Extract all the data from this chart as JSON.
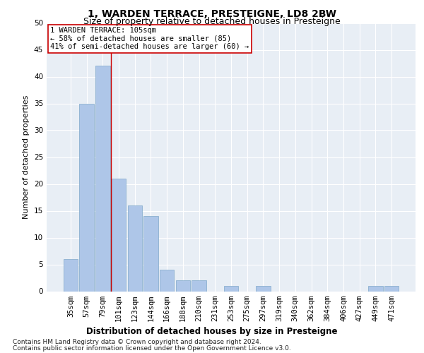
{
  "title": "1, WARDEN TERRACE, PRESTEIGNE, LD8 2BW",
  "subtitle": "Size of property relative to detached houses in Presteigne",
  "xlabel": "Distribution of detached houses by size in Presteigne",
  "ylabel": "Number of detached properties",
  "categories": [
    "35sqm",
    "57sqm",
    "79sqm",
    "101sqm",
    "123sqm",
    "144sqm",
    "166sqm",
    "188sqm",
    "210sqm",
    "231sqm",
    "253sqm",
    "275sqm",
    "297sqm",
    "319sqm",
    "340sqm",
    "362sqm",
    "384sqm",
    "406sqm",
    "427sqm",
    "449sqm",
    "471sqm"
  ],
  "values": [
    6,
    35,
    42,
    21,
    16,
    14,
    4,
    2,
    2,
    0,
    1,
    0,
    1,
    0,
    0,
    0,
    0,
    0,
    0,
    1,
    1
  ],
  "bar_color": "#aec6e8",
  "bar_edge_color": "#7fa8c9",
  "vline_x": 2.5,
  "vline_color": "#cc0000",
  "annotation_line1": "1 WARDEN TERRACE: 105sqm",
  "annotation_line2": "← 58% of detached houses are smaller (85)",
  "annotation_line3": "41% of semi-detached houses are larger (60) →",
  "annotation_box_color": "#cc0000",
  "ylim": [
    0,
    50
  ],
  "yticks": [
    0,
    5,
    10,
    15,
    20,
    25,
    30,
    35,
    40,
    45,
    50
  ],
  "footnote1": "Contains HM Land Registry data © Crown copyright and database right 2024.",
  "footnote2": "Contains public sector information licensed under the Open Government Licence v3.0.",
  "background_color": "#e8eef5",
  "grid_color": "#ffffff",
  "title_fontsize": 10,
  "subtitle_fontsize": 9,
  "xlabel_fontsize": 8.5,
  "ylabel_fontsize": 8,
  "tick_fontsize": 7.5,
  "annot_fontsize": 7.5,
  "footnote_fontsize": 6.5
}
